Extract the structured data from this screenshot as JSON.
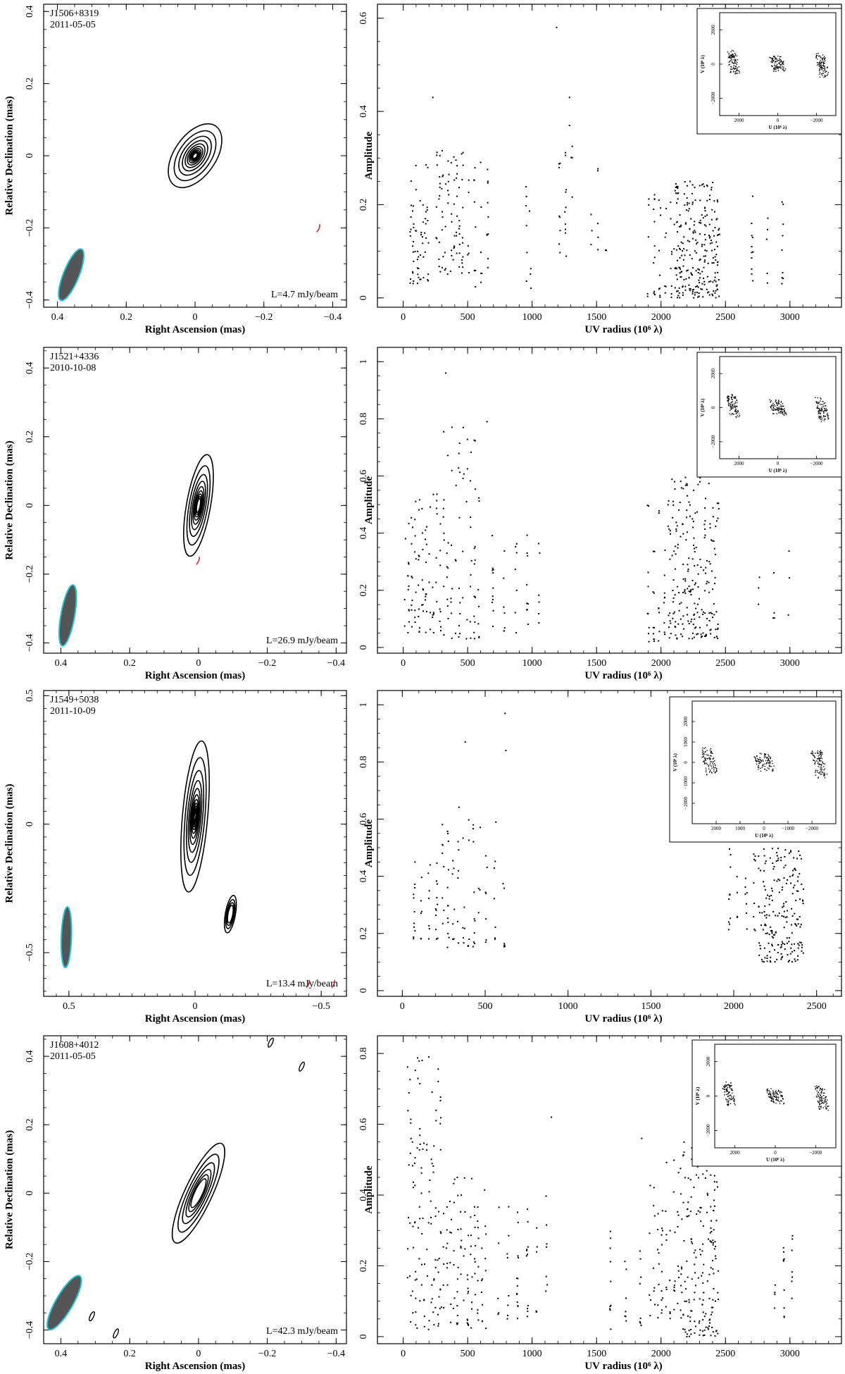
{
  "figure": {
    "panels": [
      {
        "source": "J1506+8319",
        "date": "2011-05-05",
        "level": "L=4.7 mJy/beam",
        "map": {
          "xlabel": "Right Ascension  (mas)",
          "ylabel": "Relative Declination  (mas)",
          "xticks": [
            "0.4",
            "0.2",
            "0",
            "−0.2",
            "−0.4"
          ],
          "yticks": [
            "0.4",
            "0.2",
            "0",
            "−0.2",
            "−0.4"
          ]
        },
        "vis": {
          "xlabel": "UV radius  (10⁶ λ)",
          "ylabel": "Amplitude",
          "xticks": [
            "0",
            "500",
            "1000",
            "1500",
            "2000",
            "2500",
            "3000"
          ],
          "yticks": [
            "0",
            "0.2",
            "0.4",
            "0.6"
          ]
        },
        "inset": {
          "xlabel": "U (10⁶ λ)",
          "ylabel": "V (10⁶ λ)",
          "xticks": [
            "2000",
            "0",
            "−2000"
          ],
          "yticks": [
            "2000",
            "0",
            "−2000"
          ]
        }
      },
      {
        "source": "J1521+4336",
        "date": "2010-10-08",
        "level": "L=26.9 mJy/beam",
        "map": {
          "xlabel": "Right Ascension  (mas)",
          "ylabel": "Relative Declination  (mas)",
          "xticks": [
            "0.4",
            "0.2",
            "0",
            "−0.2",
            "−0.4"
          ],
          "yticks": [
            "0.4",
            "0.2",
            "0",
            "−0.2",
            "−0.4"
          ]
        },
        "vis": {
          "xlabel": "UV radius  (10⁶ λ)",
          "ylabel": "Amplitude",
          "xticks": [
            "0",
            "500",
            "1000",
            "1500",
            "2000",
            "2500",
            "3000"
          ],
          "yticks": [
            "0",
            "0.2",
            "0.4",
            "0.6",
            "0.8",
            "1"
          ]
        },
        "inset": {
          "xlabel": "U (10⁶ λ)",
          "ylabel": "V (10⁶ λ)",
          "xticks": [
            "2000",
            "0",
            "−2000"
          ],
          "yticks": [
            "2000",
            "0",
            "−2000"
          ]
        }
      },
      {
        "source": "J1549+5038",
        "date": "2011-10-09",
        "level": "L=13.4 mJy/beam",
        "map": {
          "xlabel": "Right Ascension  (mas)",
          "ylabel": "Relative Declination  (mas)",
          "xticks": [
            "0.5",
            "0",
            "−0.5"
          ],
          "yticks": [
            "0.5",
            "0",
            "−0.5"
          ]
        },
        "vis": {
          "xlabel": "UV radius  (10⁶ λ)",
          "ylabel": "Amplitude",
          "xticks": [
            "0",
            "500",
            "1000",
            "1500",
            "2000",
            "2500"
          ],
          "yticks": [
            "0",
            "0.2",
            "0.4",
            "0.6",
            "0.8",
            "1"
          ]
        },
        "inset": {
          "xlabel": "U (10⁶ λ)",
          "ylabel": "V (10⁶ λ)",
          "xticks": [
            "2000",
            "1000",
            "0",
            "−1000",
            "−2000"
          ],
          "yticks": [
            "2000",
            "1000",
            "0",
            "−1000",
            "−2000"
          ]
        }
      },
      {
        "source": "J1608+4012",
        "date": "2011-05-05",
        "level": "L=42.3 mJy/beam",
        "map": {
          "xlabel": "Right Ascension  (mas)",
          "ylabel": "Relative Declination  (mas)",
          "xticks": [
            "0.4",
            "0.2",
            "0",
            "−0.2",
            "−0.4"
          ],
          "yticks": [
            "0.4",
            "0.2",
            "0",
            "−0.2",
            "−0.4"
          ]
        },
        "vis": {
          "xlabel": "UV radius  (10⁶ λ)",
          "ylabel": "Amplitude",
          "xticks": [
            "0",
            "500",
            "1000",
            "1500",
            "2000",
            "2500",
            "3000"
          ],
          "yticks": [
            "0",
            "0.2",
            "0.4",
            "0.6",
            "0.8"
          ]
        },
        "inset": {
          "xlabel": "U (10⁶ λ)",
          "ylabel": "V (10⁶ λ)",
          "xticks": [
            "2000",
            "0",
            "−2000"
          ],
          "yticks": [
            "2000",
            "0",
            "−2000"
          ]
        }
      }
    ]
  },
  "colors": {
    "contour": "#000000",
    "beam_fill": "#555555",
    "beam_edge": "#19c4d8",
    "negative_contour": "#e02020",
    "points": "#000000"
  },
  "chart_data": [
    {
      "type": "contour",
      "source": "J1506+8319",
      "date": "2011-05-05",
      "level_mJy_per_beam": 4.7,
      "xlabel": "Right Ascension  (mas)",
      "ylabel": "Relative Declination  (mas)",
      "xlim": [
        0.44,
        -0.44
      ],
      "ylim": [
        -0.42,
        0.42
      ],
      "component": {
        "x": 0.0,
        "y": 0.0,
        "major": 0.21,
        "minor": 0.12,
        "pa_deg": -35,
        "levels": 11
      },
      "beam": {
        "x": 0.36,
        "y": -0.33,
        "major": 0.16,
        "minor": 0.045,
        "pa_deg": 158
      },
      "negative": [
        {
          "x": -0.36,
          "y": -0.2
        }
      ]
    },
    {
      "type": "scatter",
      "source": "J1506+8319",
      "xlabel": "UV radius  (10⁶ λ)",
      "ylabel": "Amplitude",
      "xlim": [
        -200,
        3400
      ],
      "ylim": [
        -0.02,
        0.63
      ],
      "clusters": [
        {
          "x": [
            50,
            200
          ],
          "y": [
            0.03,
            0.3
          ],
          "n": 60
        },
        {
          "x": [
            250,
            470
          ],
          "y": [
            0.05,
            0.32
          ],
          "n": 80
        },
        {
          "x": [
            480,
            680
          ],
          "y": [
            0.02,
            0.3
          ],
          "n": 30
        },
        {
          "x": [
            950,
            1000
          ],
          "y": [
            0.02,
            0.3
          ],
          "n": 10
        },
        {
          "x": [
            1190,
            1330
          ],
          "y": [
            0.08,
            0.33
          ],
          "n": 22
        },
        {
          "x": [
            1430,
            1600
          ],
          "y": [
            0.1,
            0.3
          ],
          "n": 10
        },
        {
          "x": [
            1880,
            2100
          ],
          "y": [
            0.0,
            0.23
          ],
          "n": 40
        },
        {
          "x": [
            2100,
            2460
          ],
          "y": [
            0.0,
            0.25
          ],
          "n": 250
        },
        {
          "x": [
            2650,
            3000
          ],
          "y": [
            0.03,
            0.25
          ],
          "n": 25
        }
      ],
      "outliers": [
        [
          1190,
          0.58
        ],
        [
          230,
          0.43
        ],
        [
          1290,
          0.43
        ],
        [
          1290,
          0.37
        ]
      ]
    },
    {
      "type": "contour",
      "source": "J1521+4336",
      "date": "2010-10-08",
      "level_mJy_per_beam": 26.9,
      "xlabel": "Right Ascension  (mas)",
      "ylabel": "Relative Declination  (mas)",
      "xlim": [
        0.45,
        -0.43
      ],
      "ylim": [
        -0.43,
        0.46
      ],
      "component": {
        "x": 0.0,
        "y": 0.0,
        "major": 0.3,
        "minor": 0.07,
        "pa_deg": -10,
        "levels": 9
      },
      "beam": {
        "x": 0.38,
        "y": -0.32,
        "major": 0.18,
        "minor": 0.04,
        "pa_deg": 170
      },
      "negative": [
        {
          "x": 0.0,
          "y": -0.16
        }
      ]
    },
    {
      "type": "scatter",
      "source": "J1521+4336",
      "xlabel": "UV radius  (10⁶ λ)",
      "ylabel": "Amplitude",
      "xlim": [
        -200,
        3400
      ],
      "ylim": [
        -0.02,
        1.05
      ],
      "clusters": [
        {
          "x": [
            0,
            300
          ],
          "y": [
            0.05,
            0.55
          ],
          "n": 90
        },
        {
          "x": [
            300,
            600
          ],
          "y": [
            0.03,
            0.78
          ],
          "n": 80
        },
        {
          "x": [
            650,
            1100
          ],
          "y": [
            0.05,
            0.4
          ],
          "n": 40
        },
        {
          "x": [
            1880,
            2050
          ],
          "y": [
            0.02,
            0.5
          ],
          "n": 35
        },
        {
          "x": [
            2050,
            2450
          ],
          "y": [
            0.03,
            0.6
          ],
          "n": 220
        },
        {
          "x": [
            2700,
            3050
          ],
          "y": [
            0.1,
            0.35
          ],
          "n": 10
        }
      ],
      "outliers": [
        [
          330,
          0.96
        ],
        [
          650,
          0.79
        ]
      ]
    },
    {
      "type": "contour",
      "source": "J1549+5038",
      "date": "2011-10-09",
      "level_mJy_per_beam": 13.4,
      "xlabel": "Right Ascension  (mas)",
      "ylabel": "Relative Declination  (mas)",
      "xlim": [
        0.6,
        -0.6
      ],
      "ylim": [
        -0.67,
        0.52
      ],
      "component": {
        "x": 0.0,
        "y": 0.03,
        "major": 0.6,
        "minor": 0.1,
        "pa_deg": -5,
        "levels": 13
      },
      "secondary": {
        "x": -0.14,
        "y": -0.35,
        "major": 0.15,
        "minor": 0.04,
        "pa_deg": -10
      },
      "beam": {
        "x": 0.51,
        "y": -0.44,
        "major": 0.24,
        "minor": 0.04,
        "pa_deg": 178
      },
      "negative": [
        {
          "x": -0.45,
          "y": -0.62
        },
        {
          "x": -0.55,
          "y": -0.62
        }
      ]
    },
    {
      "type": "scatter",
      "source": "J1549+5038",
      "xlabel": "UV radius  (10⁶ λ)",
      "ylabel": "Amplitude",
      "xlim": [
        -150,
        2650
      ],
      "ylim": [
        -0.02,
        1.05
      ],
      "clusters": [
        {
          "x": [
            50,
            230
          ],
          "y": [
            0.18,
            0.45
          ],
          "n": 35
        },
        {
          "x": [
            230,
            480
          ],
          "y": [
            0.15,
            0.65
          ],
          "n": 60
        },
        {
          "x": [
            480,
            640
          ],
          "y": [
            0.15,
            0.6
          ],
          "n": 20
        },
        {
          "x": [
            1950,
            2150
          ],
          "y": [
            0.2,
            0.5
          ],
          "n": 30
        },
        {
          "x": [
            2150,
            2420
          ],
          "y": [
            0.1,
            0.5
          ],
          "n": 200
        }
      ],
      "outliers": [
        [
          620,
          0.97
        ],
        [
          380,
          0.87
        ],
        [
          625,
          0.84
        ]
      ]
    },
    {
      "type": "contour",
      "source": "J1608+4012",
      "date": "2011-05-05",
      "level_mJy_per_beam": 42.3,
      "xlabel": "Right Ascension  (mas)",
      "ylabel": "Relative Declination  (mas)",
      "xlim": [
        0.45,
        -0.43
      ],
      "ylim": [
        -0.44,
        0.46
      ],
      "component": {
        "x": 0.0,
        "y": 0.0,
        "major": 0.32,
        "minor": 0.08,
        "pa_deg": -25,
        "levels": 6
      },
      "beam": {
        "x": 0.39,
        "y": -0.32,
        "major": 0.18,
        "minor": 0.05,
        "pa_deg": 150
      },
      "minor_features": [
        {
          "x": 0.31,
          "y": -0.36
        },
        {
          "x": 0.24,
          "y": -0.41
        },
        {
          "x": -0.21,
          "y": 0.44
        },
        {
          "x": -0.3,
          "y": 0.37
        }
      ]
    },
    {
      "type": "scatter",
      "source": "J1608+4012",
      "xlabel": "UV radius  (10⁶ λ)",
      "ylabel": "Amplitude",
      "xlim": [
        -200,
        3400
      ],
      "ylim": [
        -0.02,
        0.85
      ],
      "clusters": [
        {
          "x": [
            30,
            300
          ],
          "y": [
            0.02,
            0.8
          ],
          "n": 120
        },
        {
          "x": [
            300,
            650
          ],
          "y": [
            0.02,
            0.45
          ],
          "n": 100
        },
        {
          "x": [
            700,
            1150
          ],
          "y": [
            0.05,
            0.4
          ],
          "n": 50
        },
        {
          "x": [
            1550,
            1900
          ],
          "y": [
            0.02,
            0.3
          ],
          "n": 25
        },
        {
          "x": [
            1900,
            2150
          ],
          "y": [
            0.05,
            0.5
          ],
          "n": 60
        },
        {
          "x": [
            2150,
            2450
          ],
          "y": [
            0.0,
            0.55
          ],
          "n": 180
        },
        {
          "x": [
            2850,
            3050
          ],
          "y": [
            0.05,
            0.3
          ],
          "n": 20
        }
      ],
      "outliers": [
        [
          1150,
          0.62
        ],
        [
          1850,
          0.56
        ]
      ]
    }
  ]
}
